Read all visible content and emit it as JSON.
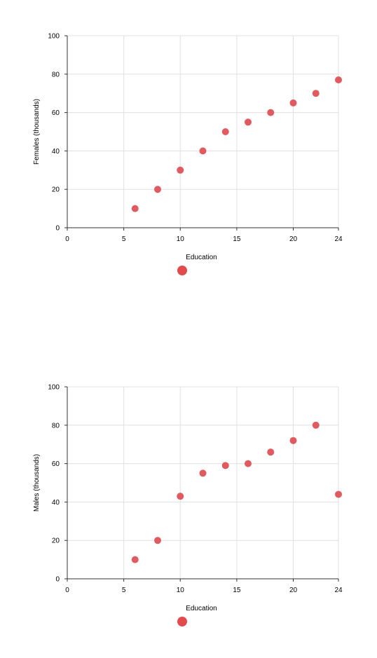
{
  "colors": {
    "point": "#e05a5f",
    "legend_marker": "#e24a4e",
    "grid": "#e0e0e0",
    "axis": "#333333"
  },
  "chart_data": [
    {
      "type": "scatter",
      "xlabel": "Education",
      "ylabel": "Females (thousands)",
      "xlim": [
        0,
        24
      ],
      "ylim": [
        0,
        100
      ],
      "x_ticks": [
        0,
        5,
        10,
        15,
        20,
        24
      ],
      "y_ticks": [
        0,
        20,
        40,
        60,
        80,
        100
      ],
      "grid": true,
      "legend": "bottom-center",
      "series": [
        {
          "x": [
            6,
            8,
            10,
            12,
            14,
            16,
            18,
            20,
            22,
            24
          ],
          "y": [
            10,
            20,
            30,
            40,
            50,
            55,
            60,
            65,
            70,
            77
          ]
        }
      ]
    },
    {
      "type": "scatter",
      "xlabel": "Education",
      "ylabel": "Males (thousands)",
      "xlim": [
        0,
        24
      ],
      "ylim": [
        0,
        100
      ],
      "x_ticks": [
        0,
        5,
        10,
        15,
        20,
        24
      ],
      "y_ticks": [
        0,
        20,
        40,
        60,
        80,
        100
      ],
      "grid": true,
      "legend": "bottom-center",
      "series": [
        {
          "x": [
            6,
            8,
            10,
            12,
            14,
            16,
            18,
            20,
            22,
            24
          ],
          "y": [
            10,
            20,
            43,
            55,
            59,
            60,
            66,
            72,
            80,
            44
          ]
        }
      ]
    }
  ]
}
